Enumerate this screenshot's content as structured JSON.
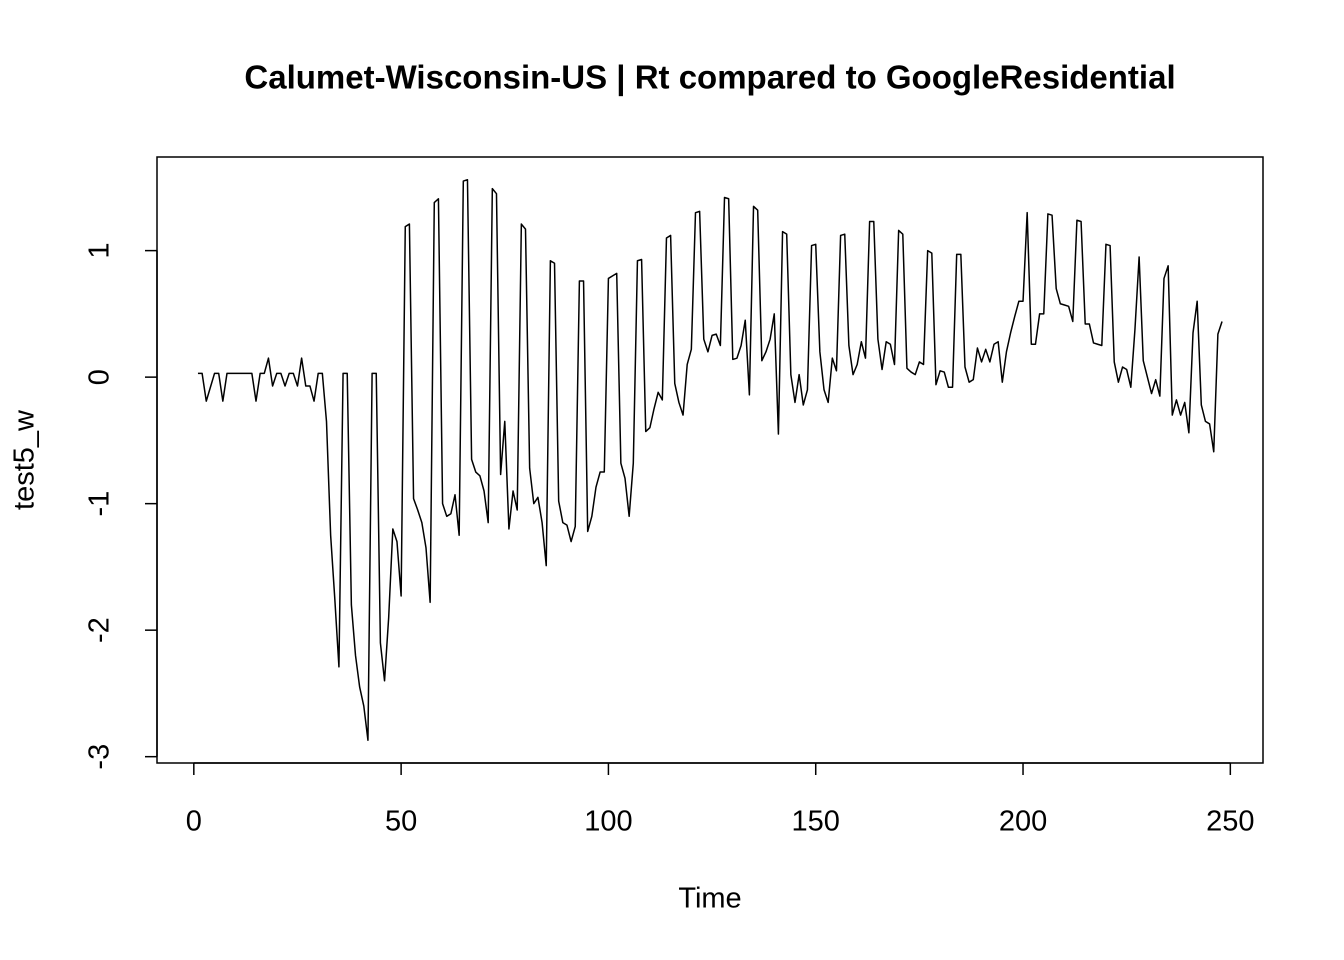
{
  "chart_data": {
    "type": "line",
    "title": "Calumet-Wisconsin-US | Rt compared to GoogleResidential",
    "x_label": "Time",
    "y_label": "test5_w",
    "color": "#000000",
    "xlim": [
      -8.88,
      257.88
    ],
    "ylim": [
      -3.05,
      1.74
    ],
    "xticks": [
      0,
      50,
      100,
      150,
      200,
      250
    ],
    "yticks": [
      -3,
      -2,
      -1,
      0,
      1
    ],
    "x": [
      1,
      2,
      3,
      4,
      5,
      6,
      7,
      8,
      9,
      10,
      11,
      12,
      13,
      14,
      15,
      16,
      17,
      18,
      19,
      20,
      21,
      22,
      23,
      24,
      25,
      26,
      27,
      28,
      29,
      30,
      31,
      32,
      33,
      34,
      35,
      36,
      37,
      38,
      39,
      40,
      41,
      42,
      43,
      44,
      45,
      46,
      47,
      48,
      49,
      50,
      51,
      52,
      53,
      54,
      55,
      56,
      57,
      58,
      59,
      60,
      61,
      62,
      63,
      64,
      65,
      66,
      67,
      68,
      69,
      70,
      71,
      72,
      73,
      74,
      75,
      76,
      77,
      78,
      79,
      80,
      81,
      82,
      83,
      84,
      85,
      86,
      87,
      88,
      89,
      90,
      91,
      92,
      93,
      94,
      95,
      96,
      97,
      98,
      99,
      100,
      101,
      102,
      103,
      104,
      105,
      106,
      107,
      108,
      109,
      110,
      111,
      112,
      113,
      114,
      115,
      116,
      117,
      118,
      119,
      120,
      121,
      122,
      123,
      124,
      125,
      126,
      127,
      128,
      129,
      130,
      131,
      132,
      133,
      134,
      135,
      136,
      137,
      138,
      139,
      140,
      141,
      142,
      143,
      144,
      145,
      146,
      147,
      148,
      149,
      150,
      151,
      152,
      153,
      154,
      155,
      156,
      157,
      158,
      159,
      160,
      161,
      162,
      163,
      164,
      165,
      166,
      167,
      168,
      169,
      170,
      171,
      172,
      173,
      174,
      175,
      176,
      177,
      178,
      179,
      180,
      181,
      182,
      183,
      184,
      185,
      186,
      187,
      188,
      189,
      190,
      191,
      192,
      193,
      194,
      195,
      196,
      197,
      198,
      199,
      200,
      201,
      202,
      203,
      204,
      205,
      206,
      207,
      208,
      209,
      210,
      211,
      212,
      213,
      214,
      215,
      216,
      217,
      218,
      219,
      220,
      221,
      222,
      223,
      224,
      225,
      226,
      227,
      228,
      229,
      230,
      231,
      232,
      233,
      234,
      235,
      236,
      237,
      238,
      239,
      240,
      241,
      242,
      243,
      244,
      245,
      246,
      247,
      248
    ],
    "values": [
      0.03,
      0.03,
      -0.19,
      -0.08,
      0.03,
      0.03,
      -0.19,
      0.03,
      0.03,
      0.03,
      0.03,
      0.03,
      0.03,
      0.03,
      -0.19,
      0.03,
      0.03,
      0.15,
      -0.07,
      0.03,
      0.03,
      -0.07,
      0.03,
      0.03,
      -0.07,
      0.15,
      -0.07,
      -0.07,
      -0.19,
      0.03,
      0.03,
      -0.35,
      -1.25,
      -1.75,
      -2.29,
      0.03,
      0.03,
      -1.8,
      -2.2,
      -2.45,
      -2.6,
      -2.87,
      0.03,
      0.03,
      -2.1,
      -2.4,
      -1.9,
      -1.2,
      -1.3,
      -1.73,
      1.19,
      1.21,
      -0.96,
      -1.05,
      -1.15,
      -1.35,
      -1.78,
      1.38,
      1.41,
      -1.0,
      -1.1,
      -1.08,
      -0.93,
      -1.25,
      1.55,
      1.56,
      -0.65,
      -0.75,
      -0.78,
      -0.9,
      -1.15,
      1.49,
      1.45,
      -0.77,
      -0.35,
      -1.2,
      -0.9,
      -1.05,
      1.21,
      1.17,
      -0.72,
      -1.0,
      -0.95,
      -1.15,
      -1.49,
      0.92,
      0.9,
      -0.98,
      -1.15,
      -1.17,
      -1.3,
      -1.18,
      0.76,
      0.76,
      -1.22,
      -1.1,
      -0.87,
      -0.75,
      -0.75,
      0.78,
      0.8,
      0.82,
      -0.68,
      -0.8,
      -1.1,
      -0.68,
      0.92,
      0.93,
      -0.43,
      -0.4,
      -0.25,
      -0.12,
      -0.18,
      1.1,
      1.12,
      -0.05,
      -0.2,
      -0.3,
      0.1,
      0.22,
      1.3,
      1.31,
      0.3,
      0.2,
      0.33,
      0.34,
      0.25,
      1.42,
      1.41,
      0.14,
      0.15,
      0.25,
      0.45,
      -0.14,
      1.35,
      1.32,
      0.13,
      0.2,
      0.3,
      0.5,
      -0.45,
      1.15,
      1.13,
      0.02,
      -0.2,
      0.02,
      -0.22,
      -0.1,
      1.04,
      1.05,
      0.2,
      -0.1,
      -0.2,
      0.15,
      0.05,
      1.12,
      1.13,
      0.25,
      0.02,
      0.1,
      0.28,
      0.15,
      1.23,
      1.23,
      0.3,
      0.06,
      0.28,
      0.26,
      0.1,
      1.16,
      1.13,
      0.07,
      0.04,
      0.02,
      0.12,
      0.1,
      1.0,
      0.98,
      -0.06,
      0.05,
      0.04,
      -0.08,
      -0.08,
      0.97,
      0.97,
      0.08,
      -0.04,
      -0.02,
      0.23,
      0.12,
      0.22,
      0.12,
      0.26,
      0.28,
      -0.04,
      0.2,
      0.35,
      0.48,
      0.6,
      0.6,
      1.3,
      0.26,
      0.26,
      0.5,
      0.5,
      1.29,
      1.28,
      0.7,
      0.58,
      0.57,
      0.56,
      0.44,
      1.24,
      1.23,
      0.42,
      0.42,
      0.27,
      0.26,
      0.25,
      1.05,
      1.04,
      0.12,
      -0.04,
      0.08,
      0.06,
      -0.08,
      0.38,
      0.95,
      0.13,
      0.0,
      -0.13,
      -0.02,
      -0.15,
      0.78,
      0.88,
      -0.3,
      -0.18,
      -0.3,
      -0.2,
      -0.44,
      0.35,
      0.6,
      -0.22,
      -0.35,
      -0.37,
      -0.59,
      0.34,
      0.44
    ]
  }
}
